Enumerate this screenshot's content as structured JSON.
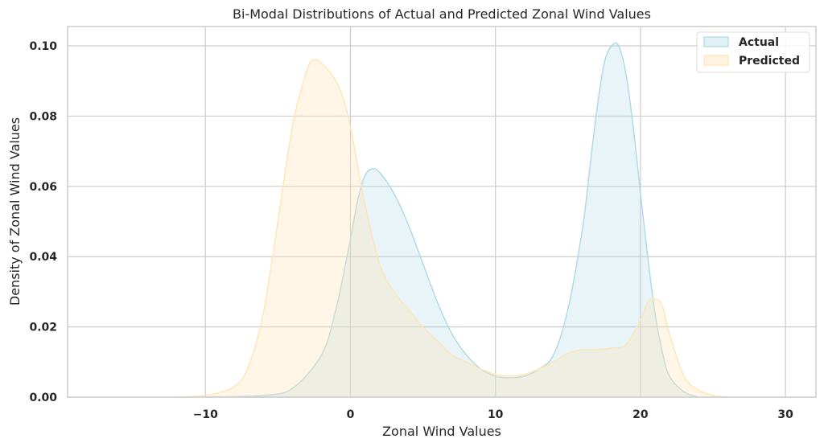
{
  "chart_data": {
    "type": "area",
    "title": "Bi-Modal Distributions of Actual and Predicted Zonal Wind Values",
    "xlabel": "Zonal Wind Values",
    "ylabel": "Density of Zonal Wind Values",
    "xlim": [
      -19.5,
      32.1
    ],
    "ylim": [
      0,
      0.1055
    ],
    "xticks": [
      -10,
      0,
      10,
      20,
      30
    ],
    "xtick_labels": [
      "−10",
      "0",
      "10",
      "20",
      "30"
    ],
    "yticks": [
      0,
      0.02,
      0.04,
      0.06,
      0.08,
      0.1
    ],
    "ytick_labels": [
      "0.00",
      "0.02",
      "0.04",
      "0.06",
      "0.08",
      "0.10"
    ],
    "grid": true,
    "legend_position": "top-right",
    "series": [
      {
        "name": "Actual",
        "color": "#add8e6",
        "fill_opacity": 0.28,
        "x": [
          -10,
          -6,
          -4,
          -2,
          -1,
          0,
          0.5,
          1,
          1.5,
          2,
          3,
          4,
          5,
          6,
          7,
          8,
          9,
          10,
          11,
          12,
          13,
          14,
          15,
          16,
          16.5,
          17,
          17.5,
          18,
          18.5,
          19,
          19.5,
          20,
          20.5,
          21,
          21.5,
          22,
          23,
          24
        ],
        "y": [
          0.0,
          0.0005,
          0.0025,
          0.012,
          0.025,
          0.045,
          0.056,
          0.063,
          0.065,
          0.064,
          0.058,
          0.049,
          0.038,
          0.027,
          0.018,
          0.012,
          0.008,
          0.006,
          0.0055,
          0.006,
          0.008,
          0.012,
          0.025,
          0.048,
          0.065,
          0.082,
          0.095,
          0.1,
          0.1,
          0.092,
          0.077,
          0.058,
          0.04,
          0.024,
          0.013,
          0.006,
          0.0015,
          0.0
        ]
      },
      {
        "name": "Predicted",
        "color": "#ffe4b5",
        "fill_opacity": 0.32,
        "x": [
          -12,
          -10,
          -8,
          -7,
          -6,
          -5,
          -4,
          -3,
          -2.5,
          -2,
          -1.5,
          -1,
          -0.5,
          0,
          1,
          2,
          3,
          4,
          5,
          6,
          7,
          8,
          9,
          10,
          11,
          12,
          13,
          14,
          15,
          16,
          17,
          18,
          19,
          20,
          20.5,
          21,
          21.5,
          22,
          23,
          24,
          25,
          26
        ],
        "y": [
          0.0,
          0.0005,
          0.003,
          0.009,
          0.024,
          0.05,
          0.077,
          0.093,
          0.096,
          0.095,
          0.093,
          0.09,
          0.085,
          0.077,
          0.055,
          0.038,
          0.03,
          0.025,
          0.02,
          0.016,
          0.012,
          0.01,
          0.008,
          0.0065,
          0.006,
          0.0065,
          0.008,
          0.01,
          0.0125,
          0.0135,
          0.0135,
          0.014,
          0.015,
          0.022,
          0.027,
          0.028,
          0.026,
          0.018,
          0.006,
          0.002,
          0.0005,
          0.0
        ]
      }
    ]
  }
}
